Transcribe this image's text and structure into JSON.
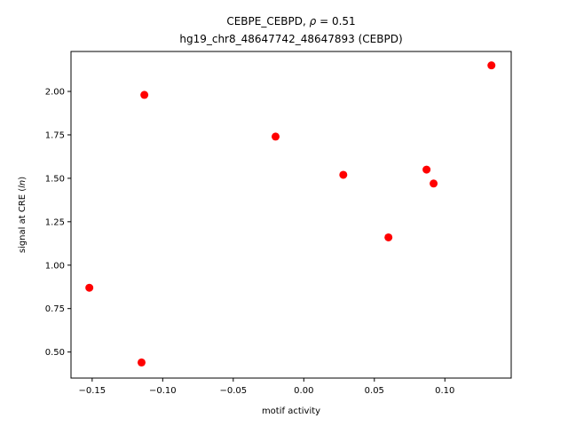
{
  "chart_data": {
    "type": "scatter",
    "title_line1_prefix": "CEBPE_CEBPD, ",
    "title_line1_rho": "ρ",
    "title_line1_suffix": " = 0.51",
    "title_line2": "hg19_chr8_48647742_48647893 (CEBPD)",
    "xlabel": "motif activity",
    "ylabel_prefix": "signal at CRE (",
    "ylabel_italic": "ln",
    "ylabel_suffix": ")",
    "xlim": [
      -0.165,
      0.147
    ],
    "ylim": [
      0.35,
      2.23
    ],
    "xticks": [
      -0.15,
      -0.1,
      -0.05,
      0.0,
      0.05,
      0.1
    ],
    "xtick_labels": [
      "−0.15",
      "−0.10",
      "−0.05",
      "0.00",
      "0.05",
      "0.10"
    ],
    "yticks": [
      0.5,
      0.75,
      1.0,
      1.25,
      1.5,
      1.75,
      2.0
    ],
    "ytick_labels": [
      "0.50",
      "0.75",
      "1.00",
      "1.25",
      "1.50",
      "1.75",
      "2.00"
    ],
    "grid": false,
    "marker_color": "#ff0000",
    "points": [
      {
        "x": -0.152,
        "y": 0.87
      },
      {
        "x": -0.115,
        "y": 0.44
      },
      {
        "x": -0.113,
        "y": 1.98
      },
      {
        "x": -0.02,
        "y": 1.74
      },
      {
        "x": 0.028,
        "y": 1.52
      },
      {
        "x": 0.06,
        "y": 1.16
      },
      {
        "x": 0.087,
        "y": 1.55
      },
      {
        "x": 0.092,
        "y": 1.47
      },
      {
        "x": 0.133,
        "y": 2.15
      }
    ]
  }
}
